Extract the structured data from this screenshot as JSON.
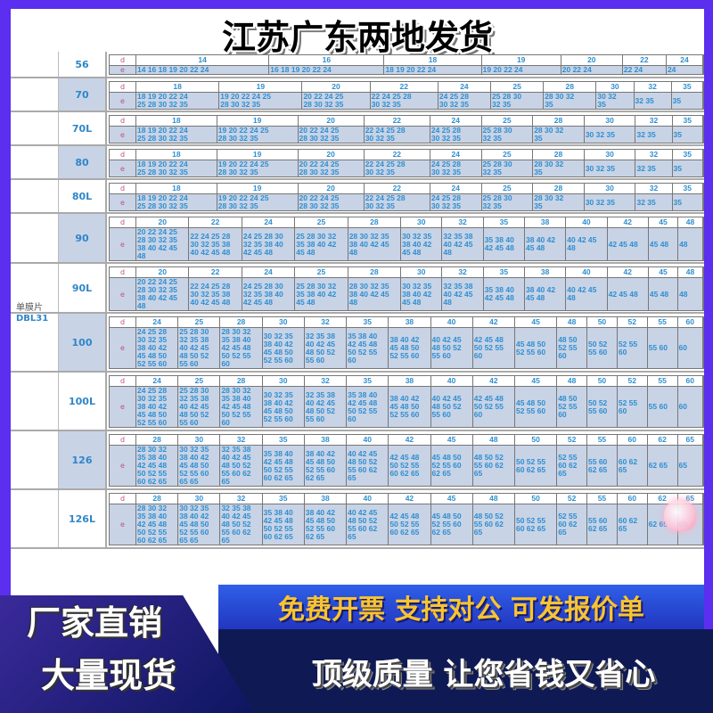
{
  "colors": {
    "frame": "#5b2ef0",
    "cell_text": "#2f8fd0",
    "cell_bg": "#c8d3e6",
    "promo_yellow": "#f8c430"
  },
  "group": {
    "label": "单膜片",
    "code": "DBL31"
  },
  "banners": {
    "top": "江苏广东两地发货",
    "invoice": "免费开票 支持对公 可发报价单",
    "left_1": "厂家直销",
    "left_2": "大量现货",
    "quality": "顶级质量 让您省钱又省心"
  },
  "decor_icon": "heart-icon",
  "labels": {
    "d": "d",
    "e": "e"
  },
  "rows": [
    {
      "model": "56",
      "d": [
        "14",
        "16",
        "18",
        "19",
        "20",
        "22",
        "24"
      ],
      "e": [
        [
          "14 16 18 19 20 22 24"
        ],
        [
          "16 18 19 20 22 24"
        ],
        [
          "18 19 20 22 24"
        ],
        [
          "19 20 22 24"
        ],
        [
          "20 22 24"
        ],
        [
          "22 24"
        ],
        [
          "24"
        ]
      ]
    },
    {
      "model": "70",
      "d": [
        "18",
        "19",
        "20",
        "22",
        "24",
        "25",
        "28",
        "30",
        "32",
        "35"
      ],
      "e": [
        [
          "18 19 20 22 24",
          "25 28 30 32 35"
        ],
        [
          "19 20 22 24 25",
          "28 30 32 35"
        ],
        [
          "20 22 24 25",
          "28 30 32 35"
        ],
        [
          "22 24 25 28",
          "30 32 35"
        ],
        [
          "24 25 28",
          "30 32 35"
        ],
        [
          "25 28 30",
          "32 35"
        ],
        [
          "28 30 32",
          "35"
        ],
        [
          "30 32",
          "35"
        ],
        [
          "32 35"
        ],
        [
          "35"
        ]
      ]
    },
    {
      "model": "70L",
      "d": [
        "18",
        "19",
        "20",
        "22",
        "24",
        "25",
        "28",
        "30",
        "32",
        "35"
      ],
      "e": [
        [
          "18 19 20 22 24",
          "25 28 30 32 35"
        ],
        [
          "19 20 22 24 25",
          "28 30 32 35"
        ],
        [
          "20 22 24 25",
          "28 30 32 35"
        ],
        [
          "22 24 25 28",
          "30 32 35"
        ],
        [
          "24 25 28",
          "30 32 35"
        ],
        [
          "25 28 30",
          "32 35"
        ],
        [
          "28 30 32",
          "35"
        ],
        [
          "30 32 35"
        ],
        [
          "32 35"
        ],
        [
          "35"
        ]
      ]
    },
    {
      "model": "80",
      "d": [
        "18",
        "19",
        "20",
        "22",
        "24",
        "25",
        "28",
        "30",
        "32",
        "35"
      ],
      "e": [
        [
          "18 19 20 22 24",
          "25 28 30 32 35"
        ],
        [
          "19 20 22 24 25",
          "28 30 32 35"
        ],
        [
          "20 22 24 25",
          "28 30 32 35"
        ],
        [
          "22 24 25 28",
          "30 32 35"
        ],
        [
          "24 25 28",
          "30 32 35"
        ],
        [
          "25 28 30",
          "32 35"
        ],
        [
          "28 30 32",
          "35"
        ],
        [
          "30 32 35"
        ],
        [
          "32 35"
        ],
        [
          "35"
        ]
      ]
    },
    {
      "model": "80L",
      "d": [
        "18",
        "19",
        "20",
        "22",
        "24",
        "25",
        "28",
        "30",
        "32",
        "35"
      ],
      "e": [
        [
          "18 19 20 22 24",
          "25 28 30 32 35"
        ],
        [
          "19 20 22 24 25",
          "28 30 32 35"
        ],
        [
          "20 22 24 25",
          "28 30 32 35"
        ],
        [
          "22 24 25 28",
          "30 32 35"
        ],
        [
          "24 25 28",
          "30 32 35"
        ],
        [
          "25 28 30",
          "32 35"
        ],
        [
          "28 30 32",
          "35"
        ],
        [
          "30 32 35"
        ],
        [
          "32 35"
        ],
        [
          "35"
        ]
      ]
    },
    {
      "model": "90",
      "d": [
        "20",
        "22",
        "24",
        "25",
        "28",
        "30",
        "32",
        "35",
        "38",
        "40",
        "42",
        "45",
        "48"
      ],
      "e": [
        [
          "20 22 24 25",
          "28 30 32 35",
          "38 40 42 45",
          "48"
        ],
        [
          "22 24 25 28",
          "30 32 35 38",
          "40 42 45 48"
        ],
        [
          "24 25 28 30",
          "32 35 38 40",
          "42 45 48"
        ],
        [
          "25 28 30 32",
          "35 38 40 42",
          "45 48"
        ],
        [
          "28 30 32 35",
          "38 40 42 45",
          "48"
        ],
        [
          "30 32 35",
          "38 40 42",
          "45 48"
        ],
        [
          "32 35 38",
          "40 42 45",
          "48"
        ],
        [
          "35 38 40",
          "42 45 48"
        ],
        [
          "38 40 42",
          "45 48"
        ],
        [
          "40 42 45",
          "48"
        ],
        [
          "42 45 48"
        ],
        [
          "45 48"
        ],
        [
          "48"
        ]
      ]
    },
    {
      "model": "90L",
      "d": [
        "20",
        "22",
        "24",
        "25",
        "28",
        "30",
        "32",
        "35",
        "38",
        "40",
        "42",
        "45",
        "48"
      ],
      "e": [
        [
          "20 22 24 25",
          "28 30 32 35",
          "38 40 42 45",
          "48"
        ],
        [
          "22 24 25 28",
          "30 32 35 38",
          "40 42 45 48"
        ],
        [
          "24 25 28 30",
          "32 35 38 40",
          "42 45 48"
        ],
        [
          "25 28 30 32",
          "35 38 40 42",
          "45 48"
        ],
        [
          "28 30 32 35",
          "38 40 42 45",
          "48"
        ],
        [
          "30 32 35",
          "38 40 42",
          "45 48"
        ],
        [
          "32 35 38",
          "40 42 45",
          "48"
        ],
        [
          "35 38 40",
          "42 45 48"
        ],
        [
          "38 40 42",
          "45 48"
        ],
        [
          "40 42 45",
          "48"
        ],
        [
          "42 45 48"
        ],
        [
          "45 48"
        ],
        [
          "48"
        ]
      ]
    },
    {
      "model": "100",
      "d": [
        "24",
        "25",
        "28",
        "30",
        "32",
        "35",
        "38",
        "40",
        "42",
        "45",
        "48",
        "50",
        "52",
        "55",
        "60"
      ],
      "e": [
        [
          "24 25 28",
          "30 32 35",
          "38 40 42",
          "45 48 50",
          "52 55 60"
        ],
        [
          "25 28 30",
          "32 35 38",
          "40 42 45",
          "48 50 52",
          "55 60"
        ],
        [
          "28 30 32",
          "35 38 40",
          "42 45 48",
          "50 52 55",
          "60"
        ],
        [
          "30 32 35",
          "38 40 42",
          "45 48 50",
          "52 55 60"
        ],
        [
          "32 35 38",
          "40 42 45",
          "48 50 52",
          "55 60"
        ],
        [
          "35 38 40",
          "42 45 48",
          "50 52 55",
          "60"
        ],
        [
          "38 40 42",
          "45 48 50",
          "52 55 60"
        ],
        [
          "40 42 45",
          "48 50 52",
          "55 60"
        ],
        [
          "42 45 48",
          "50 52 55",
          "60"
        ],
        [
          "45 48 50",
          "52 55 60"
        ],
        [
          "48 50",
          "52 55",
          "60"
        ],
        [
          "50 52",
          "55 60"
        ],
        [
          "52 55",
          "60"
        ],
        [
          "55 60"
        ],
        [
          "60"
        ]
      ]
    },
    {
      "model": "100L",
      "d": [
        "24",
        "25",
        "28",
        "30",
        "32",
        "35",
        "38",
        "40",
        "42",
        "45",
        "48",
        "50",
        "52",
        "55",
        "60"
      ],
      "e": [
        [
          "24 25 28",
          "30 32 35",
          "38 40 42",
          "45 48 50",
          "52 55 60"
        ],
        [
          "25 28 30",
          "32 35 38",
          "40 42 45",
          "48 50 52",
          "55 60"
        ],
        [
          "28 30 32",
          "35 38 40",
          "42 45 48",
          "50 52 55",
          "60"
        ],
        [
          "30 32 35",
          "38 40 42",
          "45 48 50",
          "52 55 60"
        ],
        [
          "32 35 38",
          "40 42 45",
          "48 50 52",
          "55 60"
        ],
        [
          "35 38 40",
          "42 45 48",
          "50 52 55",
          "60"
        ],
        [
          "38 40 42",
          "45 48 50",
          "52 55 60"
        ],
        [
          "40 42 45",
          "48 50 52",
          "55 60"
        ],
        [
          "42 45 48",
          "50 52 55",
          "60"
        ],
        [
          "45 48 50",
          "52 55 60"
        ],
        [
          "48 50",
          "52 55",
          "60"
        ],
        [
          "50 52",
          "55 60"
        ],
        [
          "52 55",
          "60"
        ],
        [
          "55 60"
        ],
        [
          "60"
        ]
      ]
    },
    {
      "model": "126",
      "d": [
        "28",
        "30",
        "32",
        "35",
        "38",
        "40",
        "42",
        "45",
        "48",
        "50",
        "52",
        "55",
        "60",
        "62",
        "65"
      ],
      "e": [
        [
          "28 30 32",
          "35 38 40",
          "42 45 48",
          "50 52 55",
          "60 62 65"
        ],
        [
          "30 32 35",
          "38 40 42",
          "45 48 50",
          "52 55 60",
          "65 65"
        ],
        [
          "32 35 38",
          "40 42 45",
          "48 50 52",
          "55 60 62",
          "65"
        ],
        [
          "35 38 40",
          "42 45 48",
          "50 52 55",
          "60 62 65"
        ],
        [
          "38 40 42",
          "45 48 50",
          "52 55 60",
          "62 65"
        ],
        [
          "40 42 45",
          "48 50 52",
          "55 60 62",
          "65"
        ],
        [
          "42 45 48",
          "50 52 55",
          "60 62 65"
        ],
        [
          "45 48 50",
          "52 55 60",
          "62 65"
        ],
        [
          "48 50 52",
          "55 60 62",
          "65"
        ],
        [
          "50 52 55",
          "60 62 65"
        ],
        [
          "52 55",
          "60 62",
          "65"
        ],
        [
          "55 60",
          "62 65"
        ],
        [
          "60 62",
          "65"
        ],
        [
          "62 65"
        ],
        [
          "65"
        ]
      ]
    },
    {
      "model": "126L",
      "d": [
        "28",
        "30",
        "32",
        "35",
        "38",
        "40",
        "42",
        "45",
        "48",
        "50",
        "52",
        "55",
        "60",
        "62",
        "65"
      ],
      "e": [
        [
          "28 30 32",
          "35 38 40",
          "42 45 48",
          "50 52 55",
          "60 62 65"
        ],
        [
          "30 32 35",
          "38 40 42",
          "45 48 50",
          "52 55 60",
          "65 65"
        ],
        [
          "32 35 38",
          "40 42 45",
          "48 50 52",
          "55 60 62",
          "65"
        ],
        [
          "35 38 40",
          "42 45 48",
          "50 52 55",
          "60 62 65"
        ],
        [
          "38 40 42",
          "45 48 50",
          "52 55 60",
          "62 65"
        ],
        [
          "40 42 45",
          "48 50 52",
          "55 60 62",
          "65"
        ],
        [
          "42 45 48",
          "50 52 55",
          "60 62 65"
        ],
        [
          "45 48 50",
          "52 55 60",
          "62 65"
        ],
        [
          "48 50 52",
          "55 60 62",
          "65"
        ],
        [
          "50 52 55",
          "60 62 65"
        ],
        [
          "52 55",
          "60 62",
          "65"
        ],
        [
          "55 60",
          "62 65"
        ],
        [
          "60 62",
          "65"
        ],
        [
          "62 65"
        ],
        [
          "65"
        ]
      ]
    }
  ]
}
